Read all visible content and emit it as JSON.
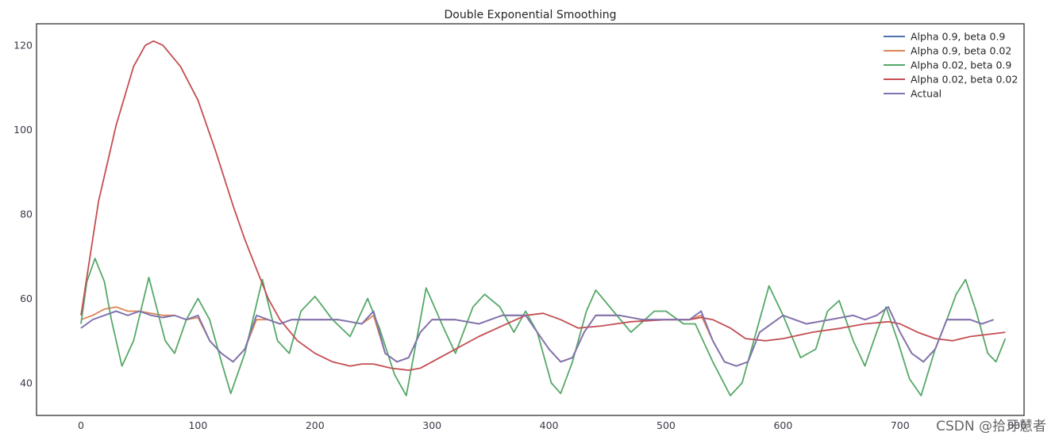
{
  "chart_data": {
    "type": "line",
    "title": "Double Exponential Smoothing",
    "xlabel": "",
    "ylabel": "",
    "xlim": [
      -38,
      806
    ],
    "ylim": [
      32.3,
      125.1
    ],
    "xticks": [
      0,
      100,
      200,
      300,
      400,
      500,
      600,
      700,
      800
    ],
    "yticks": [
      40,
      60,
      80,
      100,
      120
    ],
    "grid": false,
    "legend_position": "top-right",
    "series": [
      {
        "name": "Alpha 0.9, beta 0.9",
        "color": "#4c72b0",
        "points": [
          [
            0,
            53
          ],
          [
            10,
            55
          ],
          [
            20,
            56
          ],
          [
            30,
            57
          ],
          [
            40,
            56
          ],
          [
            50,
            57
          ],
          [
            60,
            56
          ],
          [
            70,
            55.5
          ],
          [
            80,
            56
          ],
          [
            90,
            55
          ],
          [
            100,
            56
          ],
          [
            110,
            50
          ],
          [
            120,
            47
          ],
          [
            130,
            45
          ],
          [
            140,
            48
          ],
          [
            150,
            56
          ],
          [
            160,
            55
          ],
          [
            170,
            54
          ],
          [
            180,
            55
          ],
          [
            200,
            55
          ],
          [
            220,
            55
          ],
          [
            240,
            54
          ],
          [
            250,
            57
          ],
          [
            260,
            47
          ],
          [
            270,
            45
          ],
          [
            280,
            46
          ],
          [
            290,
            52
          ],
          [
            300,
            55
          ],
          [
            320,
            55
          ],
          [
            340,
            54
          ],
          [
            360,
            56
          ],
          [
            380,
            56
          ],
          [
            390,
            52
          ],
          [
            400,
            48
          ],
          [
            410,
            45
          ],
          [
            420,
            46
          ],
          [
            430,
            52
          ],
          [
            440,
            56
          ],
          [
            460,
            56
          ],
          [
            480,
            55
          ],
          [
            500,
            55
          ],
          [
            520,
            55
          ],
          [
            530,
            57
          ],
          [
            540,
            50
          ],
          [
            550,
            45
          ],
          [
            560,
            44
          ],
          [
            570,
            45
          ],
          [
            580,
            52
          ],
          [
            590,
            54
          ],
          [
            600,
            56
          ],
          [
            620,
            54
          ],
          [
            640,
            55
          ],
          [
            660,
            56
          ],
          [
            670,
            55
          ],
          [
            680,
            56
          ],
          [
            690,
            58
          ],
          [
            700,
            52
          ],
          [
            710,
            47
          ],
          [
            720,
            45
          ],
          [
            730,
            48
          ],
          [
            740,
            55
          ],
          [
            760,
            55
          ],
          [
            770,
            54
          ],
          [
            780,
            55
          ]
        ]
      },
      {
        "name": "Alpha 0.9, beta 0.02",
        "color": "#dd8452",
        "points": [
          [
            0,
            55
          ],
          [
            10,
            56
          ],
          [
            20,
            57.5
          ],
          [
            30,
            58
          ],
          [
            40,
            57
          ],
          [
            50,
            57
          ],
          [
            60,
            56.5
          ],
          [
            70,
            56
          ],
          [
            80,
            56
          ],
          [
            90,
            55
          ],
          [
            100,
            55.5
          ],
          [
            110,
            50
          ],
          [
            120,
            47
          ],
          [
            130,
            45
          ],
          [
            140,
            48
          ],
          [
            150,
            55
          ],
          [
            160,
            55
          ],
          [
            170,
            54
          ],
          [
            180,
            55
          ],
          [
            200,
            55
          ],
          [
            220,
            55
          ],
          [
            240,
            54
          ],
          [
            250,
            56
          ],
          [
            260,
            47
          ],
          [
            270,
            45
          ],
          [
            280,
            46
          ],
          [
            290,
            52
          ],
          [
            300,
            55
          ],
          [
            320,
            55
          ],
          [
            340,
            54
          ],
          [
            360,
            56
          ],
          [
            380,
            56
          ],
          [
            390,
            52
          ],
          [
            400,
            48
          ],
          [
            410,
            45
          ],
          [
            420,
            46
          ],
          [
            430,
            52
          ],
          [
            440,
            56
          ],
          [
            460,
            56
          ],
          [
            480,
            55
          ],
          [
            500,
            55
          ],
          [
            520,
            55
          ],
          [
            530,
            56
          ],
          [
            540,
            50
          ],
          [
            550,
            45
          ],
          [
            560,
            44
          ],
          [
            570,
            45
          ],
          [
            580,
            52
          ],
          [
            590,
            54
          ],
          [
            600,
            56
          ],
          [
            620,
            54
          ],
          [
            640,
            55
          ],
          [
            660,
            56
          ],
          [
            670,
            55
          ],
          [
            680,
            56
          ],
          [
            690,
            58
          ],
          [
            700,
            52
          ],
          [
            710,
            47
          ],
          [
            720,
            45
          ],
          [
            730,
            48
          ],
          [
            740,
            55
          ],
          [
            760,
            55
          ],
          [
            770,
            54
          ],
          [
            780,
            55
          ]
        ]
      },
      {
        "name": "Alpha 0.02, beta 0.9",
        "color": "#55a868",
        "points": [
          [
            0,
            54
          ],
          [
            5,
            64
          ],
          [
            12,
            69.5
          ],
          [
            20,
            64
          ],
          [
            26,
            55
          ],
          [
            35,
            44
          ],
          [
            45,
            50
          ],
          [
            58,
            65
          ],
          [
            72,
            50
          ],
          [
            80,
            47
          ],
          [
            90,
            55
          ],
          [
            100,
            60
          ],
          [
            110,
            55
          ],
          [
            120,
            45
          ],
          [
            128,
            37.5
          ],
          [
            140,
            47
          ],
          [
            155,
            64.5
          ],
          [
            168,
            50
          ],
          [
            178,
            47
          ],
          [
            188,
            57
          ],
          [
            200,
            60.5
          ],
          [
            215,
            55
          ],
          [
            230,
            51
          ],
          [
            245,
            60
          ],
          [
            255,
            53
          ],
          [
            268,
            42
          ],
          [
            278,
            37
          ],
          [
            290,
            55
          ],
          [
            295,
            62.5
          ],
          [
            310,
            53
          ],
          [
            320,
            47
          ],
          [
            335,
            58
          ],
          [
            345,
            61
          ],
          [
            358,
            58
          ],
          [
            370,
            52
          ],
          [
            380,
            57
          ],
          [
            390,
            52
          ],
          [
            402,
            40
          ],
          [
            410,
            37.5
          ],
          [
            420,
            45
          ],
          [
            432,
            57
          ],
          [
            440,
            62
          ],
          [
            455,
            57
          ],
          [
            470,
            52
          ],
          [
            490,
            57
          ],
          [
            500,
            57
          ],
          [
            515,
            54
          ],
          [
            525,
            54
          ],
          [
            540,
            45
          ],
          [
            555,
            37
          ],
          [
            565,
            40
          ],
          [
            580,
            55
          ],
          [
            588,
            63
          ],
          [
            600,
            56
          ],
          [
            615,
            46
          ],
          [
            628,
            48
          ],
          [
            638,
            57
          ],
          [
            648,
            59.5
          ],
          [
            660,
            50
          ],
          [
            670,
            44
          ],
          [
            680,
            52
          ],
          [
            688,
            58
          ],
          [
            698,
            50
          ],
          [
            708,
            41
          ],
          [
            718,
            37
          ],
          [
            730,
            48
          ],
          [
            740,
            55
          ],
          [
            748,
            61
          ],
          [
            756,
            64.5
          ],
          [
            765,
            57
          ],
          [
            775,
            47
          ],
          [
            782,
            45
          ],
          [
            790,
            50.5
          ]
        ]
      },
      {
        "name": "Alpha 0.02, beta 0.02",
        "color": "#c44e52",
        "points": [
          [
            0,
            56
          ],
          [
            15,
            83
          ],
          [
            30,
            101
          ],
          [
            45,
            115
          ],
          [
            55,
            120
          ],
          [
            62,
            121
          ],
          [
            70,
            120
          ],
          [
            85,
            115
          ],
          [
            100,
            107
          ],
          [
            115,
            95
          ],
          [
            130,
            82
          ],
          [
            140,
            74
          ],
          [
            150,
            67
          ],
          [
            160,
            60
          ],
          [
            170,
            55
          ],
          [
            185,
            50
          ],
          [
            200,
            47
          ],
          [
            215,
            45
          ],
          [
            230,
            44
          ],
          [
            240,
            44.5
          ],
          [
            250,
            44.5
          ],
          [
            265,
            43.5
          ],
          [
            280,
            43
          ],
          [
            290,
            43.5
          ],
          [
            300,
            45
          ],
          [
            320,
            48
          ],
          [
            340,
            51
          ],
          [
            360,
            53.5
          ],
          [
            380,
            56
          ],
          [
            395,
            56.5
          ],
          [
            410,
            55
          ],
          [
            425,
            53
          ],
          [
            445,
            53.5
          ],
          [
            470,
            54.5
          ],
          [
            500,
            55
          ],
          [
            520,
            55
          ],
          [
            530,
            55.5
          ],
          [
            540,
            55
          ],
          [
            555,
            53
          ],
          [
            568,
            50.5
          ],
          [
            585,
            50
          ],
          [
            600,
            50.5
          ],
          [
            625,
            52
          ],
          [
            650,
            53
          ],
          [
            670,
            54
          ],
          [
            690,
            54.5
          ],
          [
            700,
            54
          ],
          [
            715,
            52
          ],
          [
            730,
            50.5
          ],
          [
            745,
            50
          ],
          [
            760,
            51
          ],
          [
            790,
            52
          ]
        ]
      },
      {
        "name": "Actual",
        "color": "#8172b3",
        "points": [
          [
            0,
            53
          ],
          [
            10,
            55
          ],
          [
            20,
            56
          ],
          [
            30,
            57
          ],
          [
            40,
            56
          ],
          [
            50,
            57
          ],
          [
            60,
            56
          ],
          [
            70,
            55.5
          ],
          [
            80,
            56
          ],
          [
            90,
            55
          ],
          [
            100,
            56
          ],
          [
            110,
            50
          ],
          [
            120,
            47
          ],
          [
            130,
            45
          ],
          [
            140,
            48
          ],
          [
            150,
            56
          ],
          [
            160,
            55
          ],
          [
            170,
            54
          ],
          [
            180,
            55
          ],
          [
            200,
            55
          ],
          [
            220,
            55
          ],
          [
            240,
            54
          ],
          [
            250,
            57
          ],
          [
            260,
            47
          ],
          [
            270,
            45
          ],
          [
            280,
            46
          ],
          [
            290,
            52
          ],
          [
            300,
            55
          ],
          [
            320,
            55
          ],
          [
            340,
            54
          ],
          [
            360,
            56
          ],
          [
            380,
            56
          ],
          [
            390,
            52
          ],
          [
            400,
            48
          ],
          [
            410,
            45
          ],
          [
            420,
            46
          ],
          [
            430,
            52
          ],
          [
            440,
            56
          ],
          [
            460,
            56
          ],
          [
            480,
            55
          ],
          [
            500,
            55
          ],
          [
            520,
            55
          ],
          [
            530,
            57
          ],
          [
            540,
            50
          ],
          [
            550,
            45
          ],
          [
            560,
            44
          ],
          [
            570,
            45
          ],
          [
            580,
            52
          ],
          [
            590,
            54
          ],
          [
            600,
            56
          ],
          [
            620,
            54
          ],
          [
            640,
            55
          ],
          [
            660,
            56
          ],
          [
            670,
            55
          ],
          [
            680,
            56
          ],
          [
            690,
            58
          ],
          [
            700,
            52
          ],
          [
            710,
            47
          ],
          [
            720,
            45
          ],
          [
            730,
            48
          ],
          [
            740,
            55
          ],
          [
            760,
            55
          ],
          [
            770,
            54
          ],
          [
            780,
            55
          ]
        ]
      }
    ]
  },
  "watermark": "CSDN @拾牙慧者"
}
